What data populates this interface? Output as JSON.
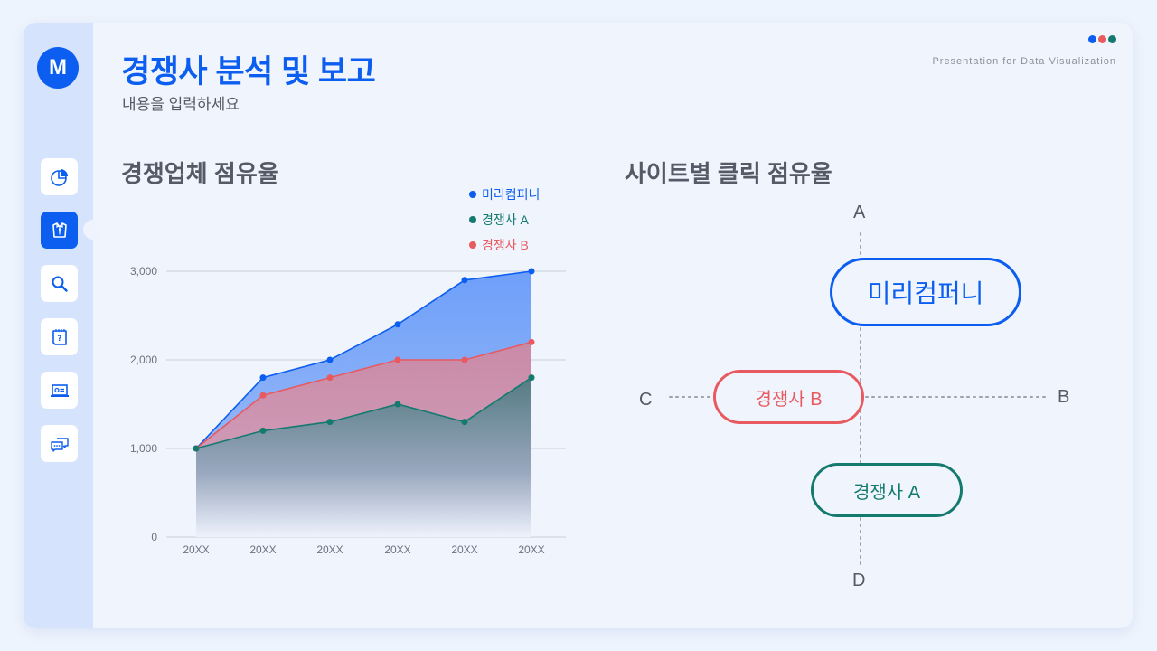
{
  "header": {
    "logo_letter": "M",
    "title": "경쟁사 분석 및 보고",
    "subtitle": "내용을 입력하세요",
    "tagline": "Presentation for Data Visualization",
    "dot_colors": [
      "#0b5ef0",
      "#e85a5f",
      "#157a6e"
    ]
  },
  "sidebar": {
    "items": [
      {
        "name": "pie-chart",
        "active": false
      },
      {
        "name": "suit",
        "active": true
      },
      {
        "name": "search",
        "active": false
      },
      {
        "name": "question-note",
        "active": false
      },
      {
        "name": "laptop-card",
        "active": false
      },
      {
        "name": "chat",
        "active": false
      }
    ]
  },
  "left_panel": {
    "title": "경쟁업체 점유율",
    "legend": [
      {
        "label": "미리컴퍼니",
        "color": "#0b5ef0"
      },
      {
        "label": "경쟁사 A",
        "color": "#157a6e"
      },
      {
        "label": "경쟁사 B",
        "color": "#e85a5f"
      }
    ]
  },
  "right_panel": {
    "title": "사이트별 클릭 점유율",
    "axes": {
      "top": "A",
      "right": "B",
      "left": "C",
      "bottom": "D"
    },
    "pills": [
      {
        "label": "미리컴퍼니",
        "color": "#0b5ef0"
      },
      {
        "label": "경쟁사 B",
        "color": "#e85a5f"
      },
      {
        "label": "경쟁사 A",
        "color": "#157a6e"
      }
    ]
  },
  "chart_data": {
    "type": "area",
    "title": "경쟁업체 점유율",
    "categories": [
      "20XX",
      "20XX",
      "20XX",
      "20XX",
      "20XX",
      "20XX"
    ],
    "series": [
      {
        "name": "미리컴퍼니",
        "color": "#0b5ef0",
        "values": [
          1000,
          1800,
          2000,
          2400,
          2900,
          3000
        ]
      },
      {
        "name": "경쟁사 B",
        "color": "#e85a5f",
        "values": [
          1000,
          1600,
          1800,
          2000,
          2000,
          2200
        ]
      },
      {
        "name": "경쟁사 A",
        "color": "#157a6e",
        "values": [
          1000,
          1200,
          1300,
          1500,
          1300,
          1800
        ]
      }
    ],
    "yticks": [
      "0",
      "1,000",
      "2,000",
      "3,000"
    ],
    "ylim": [
      0,
      3000
    ],
    "xlabel": "",
    "ylabel": "",
    "grid": true,
    "legend_position": "top-right"
  }
}
